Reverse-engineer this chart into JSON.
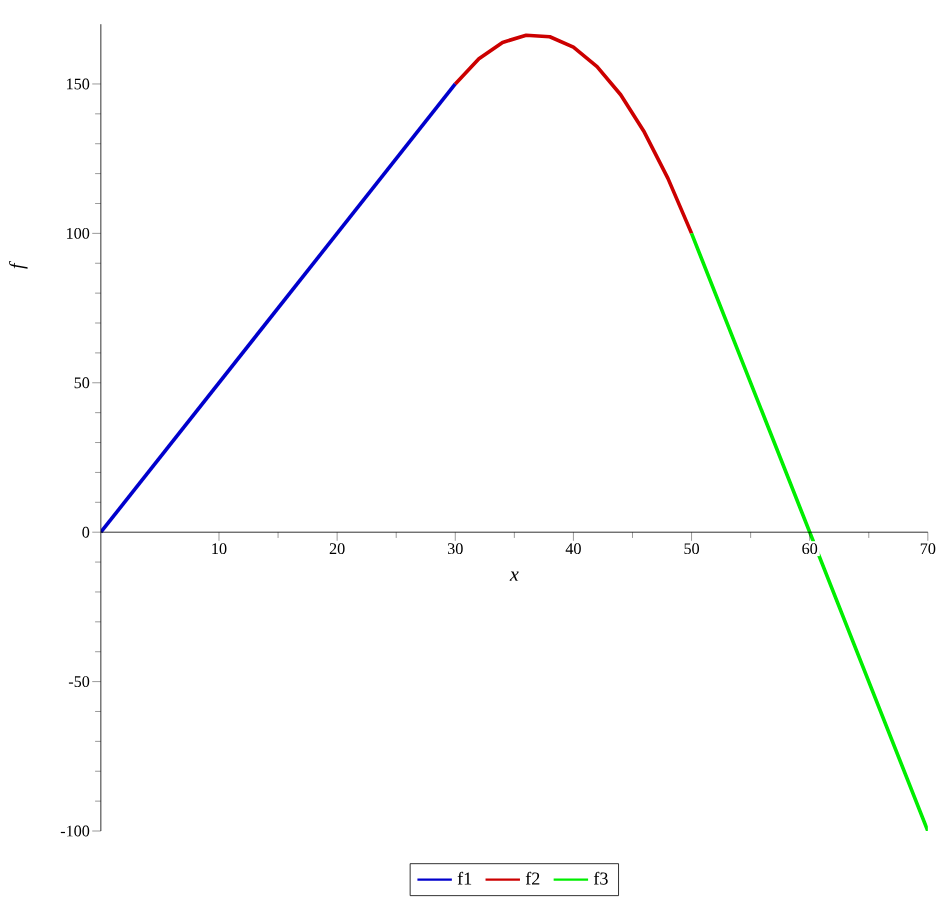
{
  "chart_data": {
    "type": "line",
    "xlabel": "x",
    "ylabel": "f",
    "xlim": [
      0,
      70
    ],
    "ylim": [
      -100,
      170
    ],
    "xticks": [
      10,
      20,
      30,
      40,
      50,
      60,
      70
    ],
    "yticks": [
      -100,
      -50,
      0,
      50,
      100,
      150
    ],
    "legend": "bottom",
    "grid": false,
    "marker": "none",
    "line_style": "solid",
    "series": [
      {
        "name": "f1",
        "color": "#0000cc",
        "x": [
          0,
          30
        ],
        "values": [
          0,
          150
        ]
      },
      {
        "name": "f2",
        "color": "#cc0000",
        "x": [
          30,
          32,
          34,
          36,
          38,
          40,
          42,
          44,
          46,
          48,
          50
        ],
        "values": [
          150,
          158.4,
          163.9,
          166.3,
          165.8,
          162.3,
          155.8,
          146.4,
          133.9,
          118.4,
          100
        ]
      },
      {
        "name": "f3",
        "color": "#00ee00",
        "x": [
          50,
          60,
          70
        ],
        "values": [
          100,
          0,
          -100
        ]
      }
    ]
  }
}
